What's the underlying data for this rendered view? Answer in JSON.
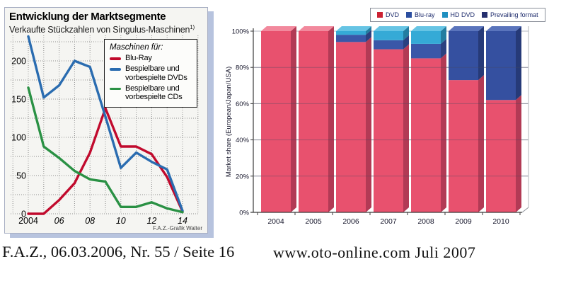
{
  "captions": {
    "source_left": "F.A.Z., 06.03.2006, Nr. 55 / Seite 16",
    "source_right": "www.oto-online.com Juli 2007"
  },
  "faz_panel": {
    "title": "Entwicklung der Marktsegmente",
    "subtitle": "Verkaufte Stückzahlen von Singulus-Maschinen",
    "footnote_marker": "1)",
    "legend_title": "Maschinen für:",
    "attribution": "F.A.Z.-Grafik Walter",
    "shadow_color": "#b7c3de",
    "background_color": "#f5f5f2"
  },
  "chart_data": [
    {
      "type": "line",
      "title": "Entwicklung der Marktsegmente",
      "subtitle": "Verkaufte Stückzahlen von Singulus-Maschinen 1)",
      "legend_title": "Maschinen für:",
      "x": [
        2004,
        2005,
        2006,
        2007,
        2008,
        2009,
        2010,
        2011,
        2012,
        2013,
        2014
      ],
      "xticks": [
        {
          "year": 2004,
          "label": "2004",
          "italic": false
        },
        {
          "year": 2006,
          "label": "06",
          "italic": true
        },
        {
          "year": 2008,
          "label": "08",
          "italic": true
        },
        {
          "year": 2010,
          "label": "10",
          "italic": true
        },
        {
          "year": 2012,
          "label": "12",
          "italic": true
        },
        {
          "year": 2014,
          "label": "14",
          "italic": true
        }
      ],
      "yticks": [
        0,
        50,
        100,
        150,
        200
      ],
      "ylim": [
        0,
        240
      ],
      "grid": "dotted, 1-year vertical / 25-unit horizontal",
      "legend_position": "upper right box",
      "series": [
        {
          "name": "Blu-Ray",
          "color": "#c10a2d",
          "values": [
            0,
            0,
            18,
            40,
            80,
            138,
            88,
            88,
            78,
            48,
            3
          ]
        },
        {
          "name": "Bespielbare und vorbespielte DVDs",
          "color": "#2a6cb0",
          "values": [
            232,
            152,
            168,
            200,
            192,
            127,
            60,
            80,
            68,
            58,
            4
          ]
        },
        {
          "name": "Bespielbare und vorbespielte CDs",
          "color": "#2a9144",
          "values": [
            165,
            88,
            73,
            56,
            45,
            42,
            9,
            9,
            15,
            7,
            2
          ]
        }
      ],
      "attribution": "F.A.Z.-Grafik Walter"
    },
    {
      "type": "bar",
      "stacked": true,
      "style": "3d",
      "categories": [
        "2004",
        "2005",
        "2006",
        "2007",
        "2008",
        "2009",
        "2010"
      ],
      "ylabel": "Market share (European/Japan/USA)",
      "yticks": [
        0,
        20,
        40,
        60,
        80,
        100
      ],
      "ytick_suffix": "%",
      "ylim": [
        0,
        100
      ],
      "legend_position": "top, boxed",
      "series": [
        {
          "name": "DVD",
          "legend_color": "#cc2233",
          "bar_color": "#e8516e",
          "side_color": "#b23a55",
          "top_color": "#f2899d",
          "values": [
            100,
            100,
            94,
            90,
            85,
            73,
            62
          ]
        },
        {
          "name": "Blu-ray",
          "legend_color": "#2b4ea0",
          "bar_color": "#3a57a8",
          "side_color": "#2a4180",
          "top_color": "#5f7cc4",
          "values": [
            0,
            0,
            4,
            5,
            8,
            0,
            0
          ]
        },
        {
          "name": "HD DVD",
          "legend_color": "#2090c0",
          "bar_color": "#35aad6",
          "side_color": "#237da0",
          "top_color": "#66c4e4",
          "values": [
            0,
            0,
            2,
            5,
            7,
            0,
            0
          ]
        },
        {
          "name": "Prevailing format",
          "legend_color": "#252f6e",
          "bar_color": "#3550a0",
          "side_color": "#263a78",
          "top_color": "#5a74bc",
          "values": [
            0,
            0,
            0,
            0,
            0,
            27,
            38
          ]
        }
      ]
    }
  ]
}
